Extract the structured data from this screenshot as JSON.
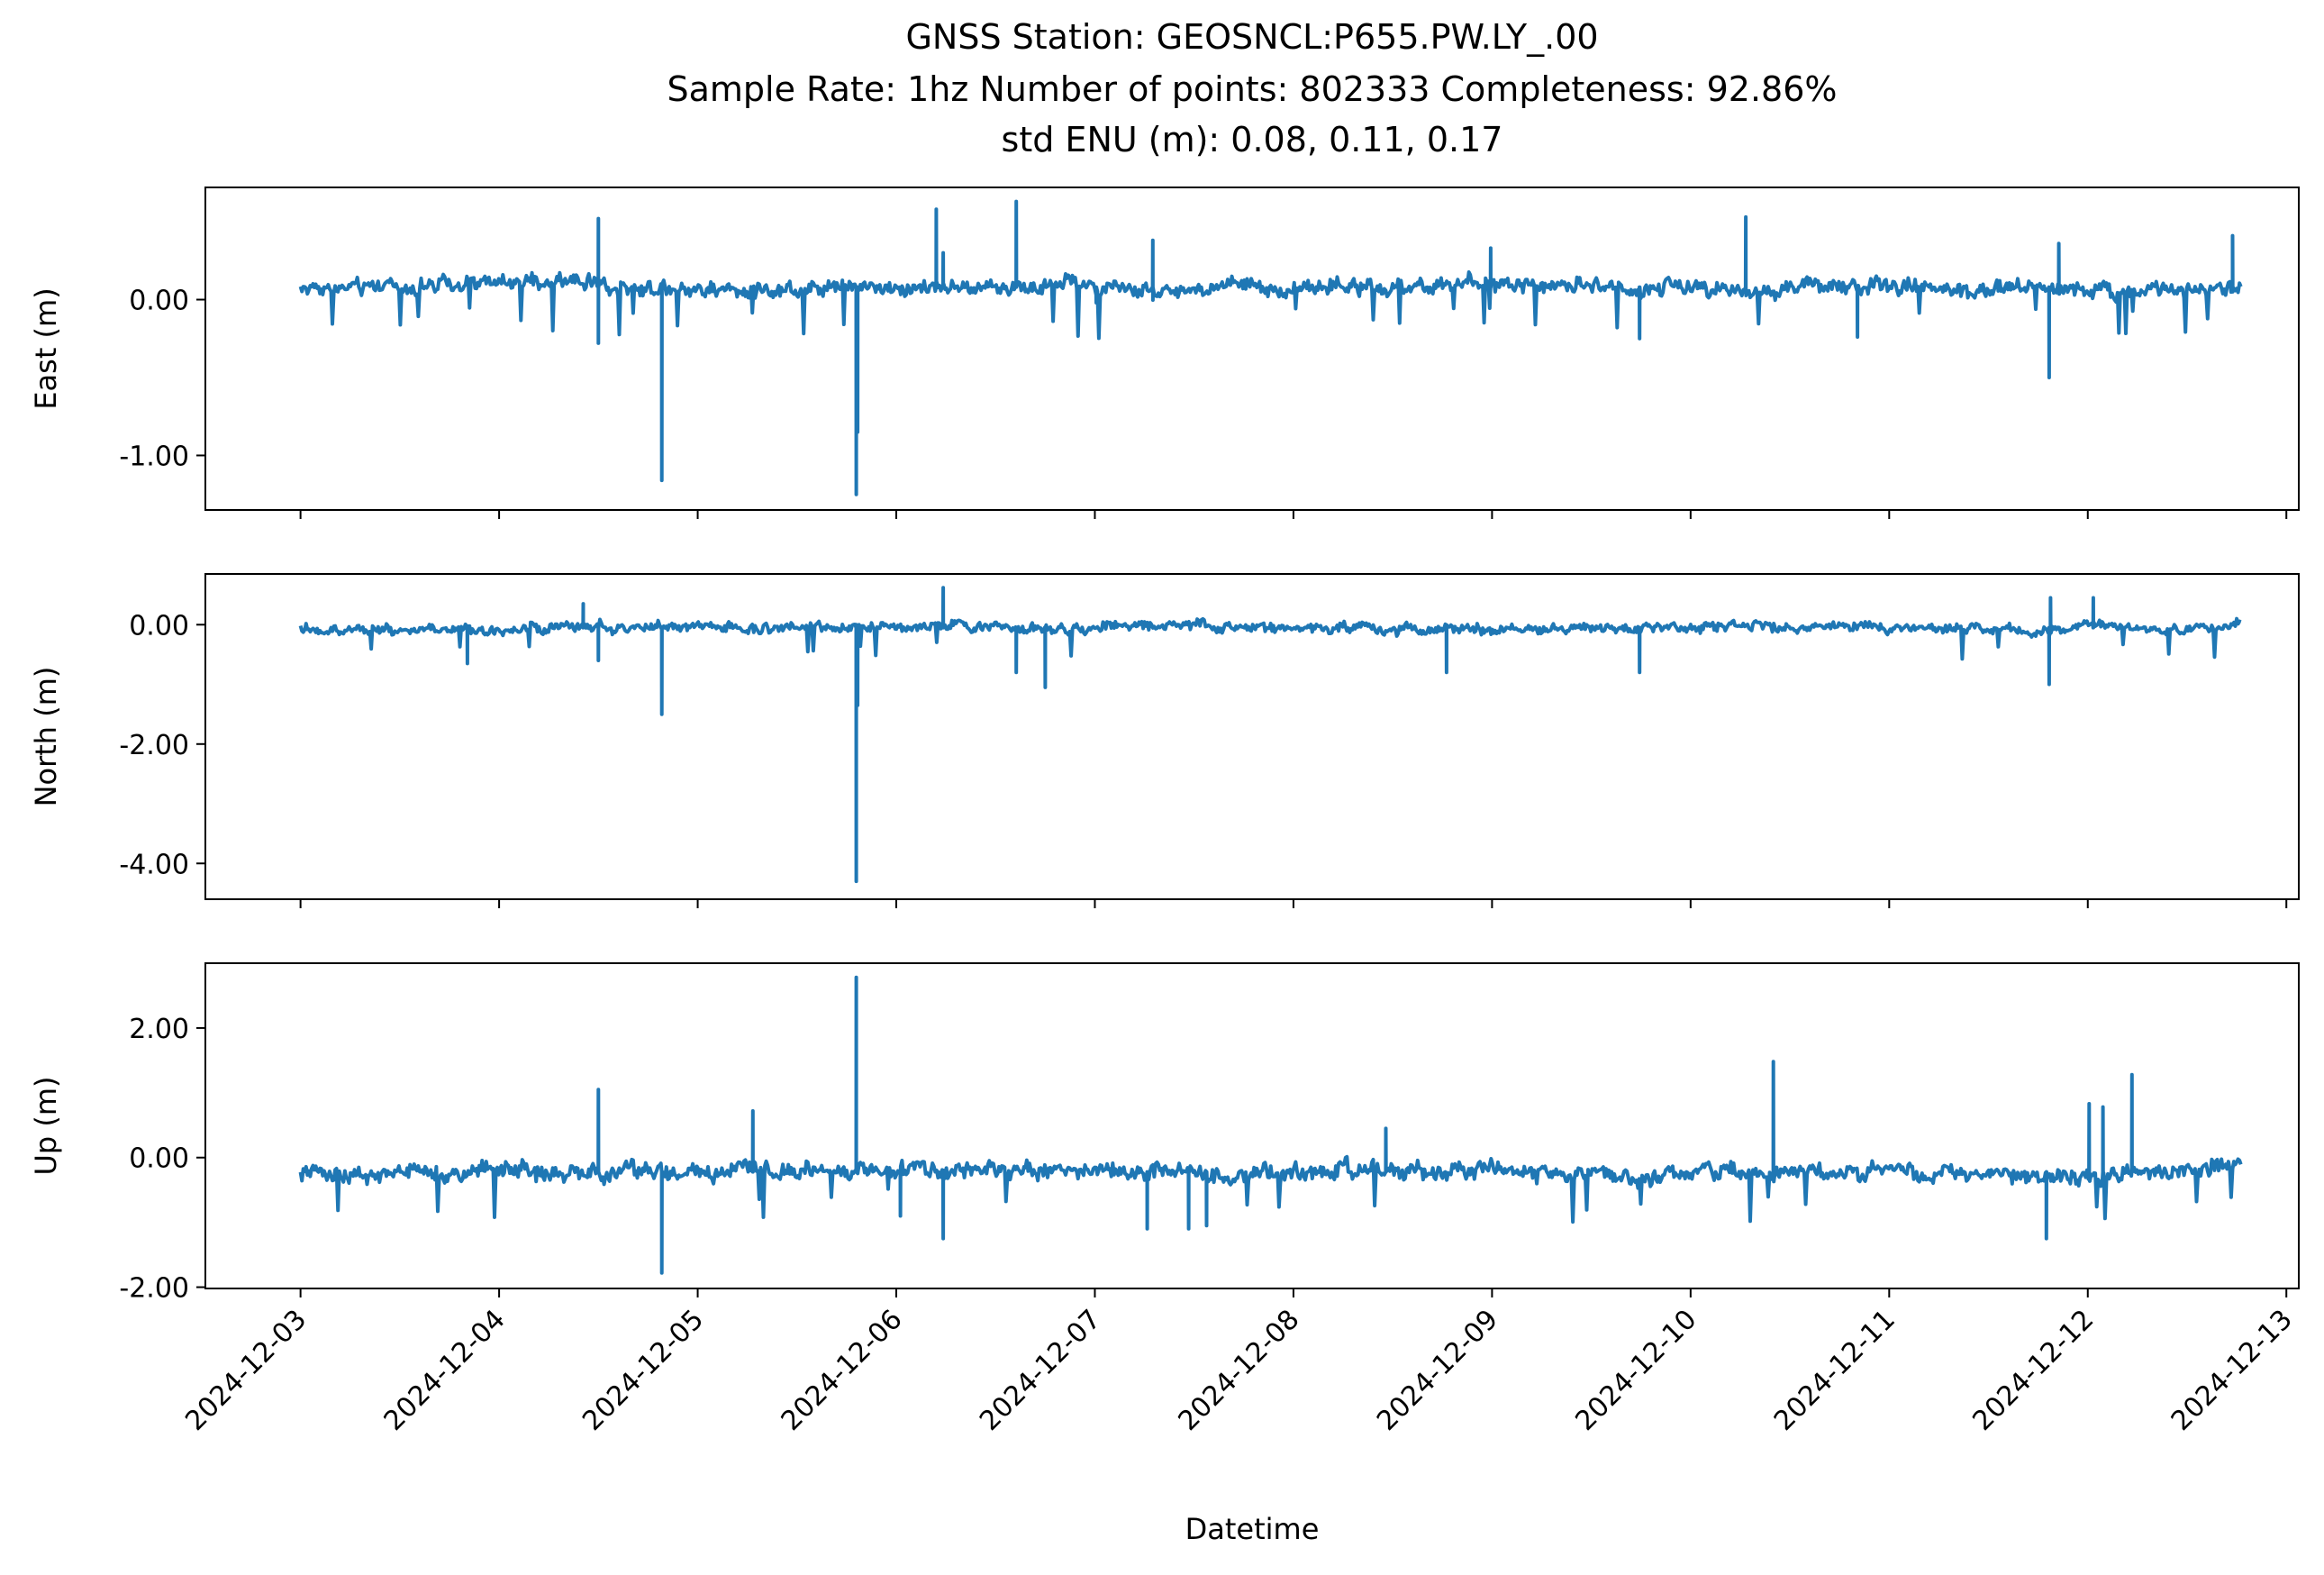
{
  "title": {
    "line1": "GNSS Station: GEOSNCL:P655.PW.LY_.00",
    "line2": "Sample Rate: 1hz   Number of points: 802333    Completeness:  92.86%",
    "line3": "std ENU (m):  0.08, 0.11, 0.17"
  },
  "xlabel": "Datetime",
  "line_color": "#1f77b4",
  "chart_data": {
    "type": "line",
    "x_ticks": [
      "2024-12-03",
      "2024-12-04",
      "2024-12-05",
      "2024-12-06",
      "2024-12-07",
      "2024-12-08",
      "2024-12-09",
      "2024-12-10",
      "2024-12-11",
      "2024-12-12",
      "2024-12-13"
    ],
    "x_range": [
      "2024-12-02T12:30",
      "2024-12-13T01:30"
    ],
    "x_data_range": [
      "2024-12-03T00:00",
      "2024-12-12T18:30"
    ],
    "panels": [
      {
        "ylabel": "East (m)",
        "ylim": [
          -1.35,
          0.72
        ],
        "yticks": [
          0.0,
          -1.0
        ],
        "ytick_labels": [
          "0.00",
          "-1.00"
        ],
        "baseline": 0.08,
        "noise": 0.07,
        "spikes": [
          {
            "t": "2024-12-04T12:00",
            "v": 0.52
          },
          {
            "t": "2024-12-04T12:00",
            "v": -0.28
          },
          {
            "t": "2024-12-04T19:40",
            "v": -1.16
          },
          {
            "t": "2024-12-05T19:10",
            "v": -1.25
          },
          {
            "t": "2024-12-05T19:20",
            "v": -0.85
          },
          {
            "t": "2024-12-06T04:50",
            "v": 0.58
          },
          {
            "t": "2024-12-06T05:40",
            "v": 0.3
          },
          {
            "t": "2024-12-06T14:30",
            "v": 0.63
          },
          {
            "t": "2024-12-07T00:10",
            "v": -0.02
          },
          {
            "t": "2024-12-07T07:00",
            "v": 0.38
          },
          {
            "t": "2024-12-08T23:50",
            "v": 0.33
          },
          {
            "t": "2024-12-09T17:50",
            "v": -0.25
          },
          {
            "t": "2024-12-10T06:40",
            "v": 0.53
          },
          {
            "t": "2024-12-10T20:10",
            "v": -0.24
          },
          {
            "t": "2024-12-11T19:20",
            "v": -0.5
          },
          {
            "t": "2024-12-11T20:30",
            "v": 0.36
          },
          {
            "t": "2024-12-12T17:30",
            "v": 0.41
          }
        ]
      },
      {
        "ylabel": "North (m)",
        "ylim": [
          -4.6,
          0.85
        ],
        "yticks": [
          0.0,
          -2.0,
          -4.0
        ],
        "ytick_labels": [
          "0.00",
          "-2.00",
          "-4.00"
        ],
        "baseline": -0.05,
        "noise": 0.12,
        "spikes": [
          {
            "t": "2024-12-03T20:10",
            "v": -0.65
          },
          {
            "t": "2024-12-04T10:10",
            "v": 0.35
          },
          {
            "t": "2024-12-04T12:00",
            "v": -0.6
          },
          {
            "t": "2024-12-04T19:40",
            "v": -1.5
          },
          {
            "t": "2024-12-05T19:10",
            "v": -4.3
          },
          {
            "t": "2024-12-05T19:20",
            "v": -1.35
          },
          {
            "t": "2024-12-06T05:40",
            "v": 0.62
          },
          {
            "t": "2024-12-06T14:30",
            "v": -0.8
          },
          {
            "t": "2024-12-06T18:00",
            "v": -1.05
          },
          {
            "t": "2024-12-08T18:30",
            "v": -0.8
          },
          {
            "t": "2024-12-09T17:50",
            "v": -0.8
          },
          {
            "t": "2024-12-11T19:20",
            "v": -1.0
          },
          {
            "t": "2024-12-11T19:30",
            "v": 0.45
          },
          {
            "t": "2024-12-12T00:40",
            "v": 0.45
          }
        ]
      },
      {
        "ylabel": "Up (m)",
        "ylim": [
          -2.02,
          3.0
        ],
        "yticks": [
          2.0,
          0.0,
          -2.0
        ],
        "ytick_labels": [
          "2.00",
          "0.00",
          "-2.00"
        ],
        "baseline": -0.22,
        "noise": 0.18,
        "spikes": [
          {
            "t": "2024-12-04T12:00",
            "v": 1.05
          },
          {
            "t": "2024-12-04T19:40",
            "v": -1.78
          },
          {
            "t": "2024-12-05T06:40",
            "v": 0.72
          },
          {
            "t": "2024-12-05T19:10",
            "v": 2.78
          },
          {
            "t": "2024-12-06T00:30",
            "v": -0.9
          },
          {
            "t": "2024-12-06T05:40",
            "v": -1.25
          },
          {
            "t": "2024-12-07T06:20",
            "v": -1.1
          },
          {
            "t": "2024-12-07T11:20",
            "v": -1.1
          },
          {
            "t": "2024-12-07T13:30",
            "v": -1.05
          },
          {
            "t": "2024-12-08T11:10",
            "v": 0.45
          },
          {
            "t": "2024-12-10T10:00",
            "v": 1.48
          },
          {
            "t": "2024-12-11T19:00",
            "v": -1.25
          },
          {
            "t": "2024-12-12T00:10",
            "v": 0.83
          },
          {
            "t": "2024-12-12T01:50",
            "v": 0.78
          },
          {
            "t": "2024-12-12T05:20",
            "v": 1.28
          }
        ]
      }
    ]
  }
}
